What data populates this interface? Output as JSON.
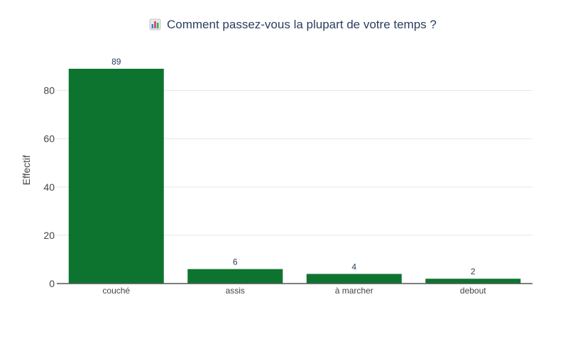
{
  "chart_data": {
    "type": "bar",
    "title": "Comment passez-vous la plupart de votre temps ?",
    "title_icon": "bar-chart-emoji-icon",
    "xlabel": "",
    "ylabel": "Effectif",
    "categories": [
      "couché",
      "assis",
      "à marcher",
      "debout"
    ],
    "values": [
      89,
      6,
      4,
      2
    ],
    "value_labels": [
      "89",
      "6",
      "4",
      "2"
    ],
    "ylim": [
      0,
      94
    ],
    "yticks": [
      0,
      20,
      40,
      60,
      80
    ],
    "ytick_labels": [
      "0",
      "20",
      "40",
      "60",
      "80"
    ],
    "grid": true,
    "legend": "none",
    "colors": {
      "bar": "#0d7430",
      "grid": "#e6e6e6",
      "axis_line": "#555555",
      "text": "#444444",
      "title_text": "#2a3f5f"
    }
  }
}
